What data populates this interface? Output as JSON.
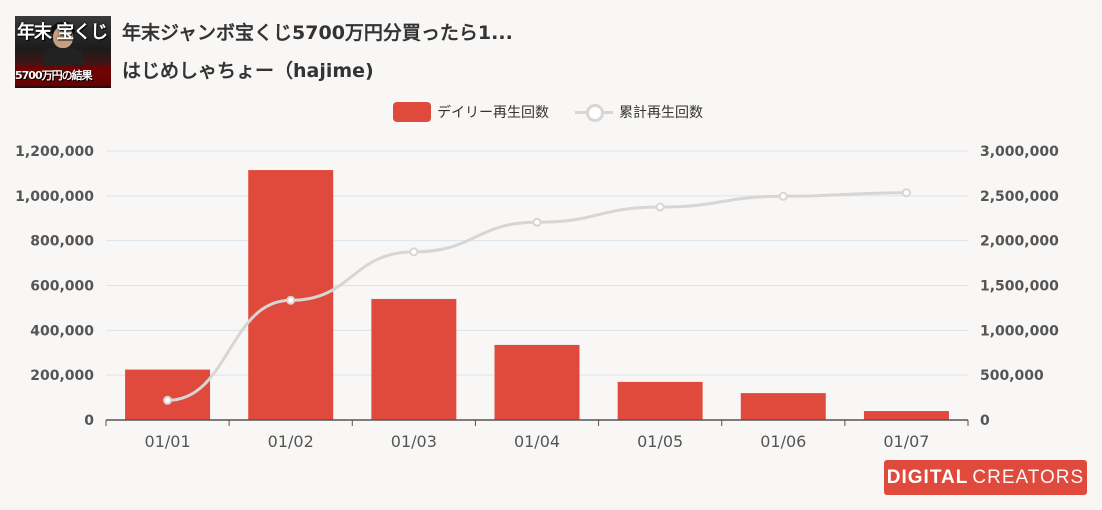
{
  "video": {
    "title": "年末ジャンボ宝くじ5700万円分買ったら1...",
    "channel": "はじめしゃちょー（hajime)",
    "thumbnail_text_top": "年末 宝くじ",
    "thumbnail_text_bottom": "5700万円の結果"
  },
  "legend": {
    "daily_label": "デイリー再生回数",
    "cumulative_label": "累計再生回数"
  },
  "colors": {
    "bar": "#e04a3c",
    "line": "#d8d6d4",
    "grid": "#dde3ec",
    "axis_text": "#555555"
  },
  "chart_data": {
    "type": "bar+line",
    "categories": [
      "01/01",
      "01/02",
      "01/03",
      "01/04",
      "01/05",
      "01/06",
      "01/07"
    ],
    "series": [
      {
        "name": "デイリー再生回数",
        "type": "bar",
        "axis": "left",
        "values": [
          225000,
          1115000,
          540000,
          335000,
          170000,
          120000,
          40000
        ]
      },
      {
        "name": "累計再生回数",
        "type": "line",
        "axis": "right",
        "values": [
          220000,
          1335000,
          1875000,
          2205000,
          2375000,
          2495000,
          2535000
        ]
      }
    ],
    "y_left": {
      "min": 0,
      "max": 1200000,
      "ticks": [
        "0",
        "200,000",
        "400,000",
        "600,000",
        "800,000",
        "1,000,000",
        "1,200,000"
      ]
    },
    "y_right": {
      "min": 0,
      "max": 3000000,
      "ticks": [
        "0",
        "500,000",
        "1,000,000",
        "1,500,000",
        "2,000,000",
        "2,500,000",
        "3,000,000"
      ]
    },
    "grid": true,
    "legend_position": "top-center"
  },
  "badge": {
    "brand_bold": "DIGITAL",
    "brand_light": "CREATORS"
  }
}
